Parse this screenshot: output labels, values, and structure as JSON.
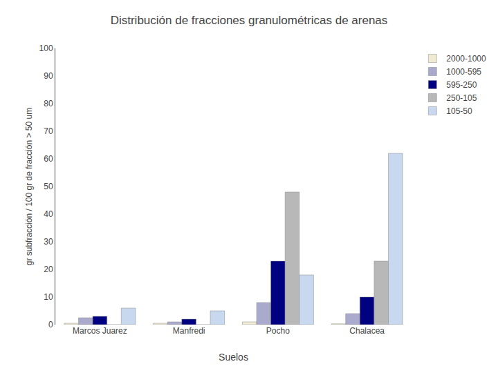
{
  "chart_data": {
    "type": "bar",
    "title": "Distribución de fracciones granulométricas de arenas",
    "xlabel": "Suelos",
    "ylabel": "gr subfracción / 100 gr de fracción > 50 um",
    "categories": [
      "Marcos Juarez",
      "Manfredi",
      "Pocho",
      "Chalacea"
    ],
    "series": [
      {
        "name": "2000-1000",
        "color": "#f0ead2",
        "values": [
          0.5,
          0.5,
          1.0,
          0.3
        ]
      },
      {
        "name": "1000-595",
        "color": "#aaaacc",
        "values": [
          2.5,
          1.0,
          8.0,
          4.0
        ]
      },
      {
        "name": "595-250",
        "color": "#000080",
        "values": [
          3.0,
          2.0,
          23.0,
          10.0
        ]
      },
      {
        "name": "250-105",
        "color": "#b8b8b8",
        "values": [
          0.0,
          0.0,
          48.0,
          23.0
        ]
      },
      {
        "name": "105-50",
        "color": "#c8d8ee",
        "values": [
          6.0,
          5.0,
          18.0,
          62.0
        ]
      }
    ],
    "ylim": [
      0,
      100
    ],
    "yticks": [
      0,
      10,
      20,
      30,
      40,
      50,
      60,
      70,
      80,
      90,
      100
    ],
    "grid": false,
    "legend": "upper right"
  }
}
